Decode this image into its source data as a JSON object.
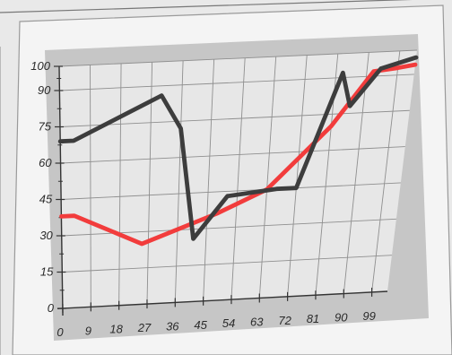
{
  "chart_data": {
    "type": "line",
    "title": "",
    "xlabel": "",
    "ylabel": "",
    "xlim": [
      0,
      104
    ],
    "ylim": [
      0,
      100
    ],
    "x_ticks": [
      "0",
      "9",
      "18",
      "27",
      "36",
      "45",
      "54",
      "63",
      "72",
      "81",
      "90",
      "99"
    ],
    "y_ticks": [
      "0",
      "15",
      "30",
      "45",
      "60",
      "75",
      "90",
      "100"
    ],
    "grid": true,
    "legend": "none",
    "colors": {
      "frame": "#f4f4f4",
      "mat": "#c6c6c6",
      "plot_bg": "#e7e7e7",
      "grid": "#8f8f8f",
      "axis": "#333333"
    },
    "series": [
      {
        "color": "#f23c3c",
        "x": [
          0,
          4,
          25,
          48,
          63,
          81,
          92,
          99,
          104
        ],
        "y": [
          38,
          38,
          25,
          36,
          45,
          70,
          92,
          93,
          94
        ]
      },
      {
        "color": "#3d3d3d",
        "x": [
          0,
          4,
          30,
          36,
          41,
          51,
          66,
          72,
          83,
          86,
          94,
          104
        ],
        "y": [
          69,
          69,
          86,
          72,
          26,
          43,
          45,
          45,
          92,
          78,
          93,
          97
        ]
      }
    ]
  }
}
